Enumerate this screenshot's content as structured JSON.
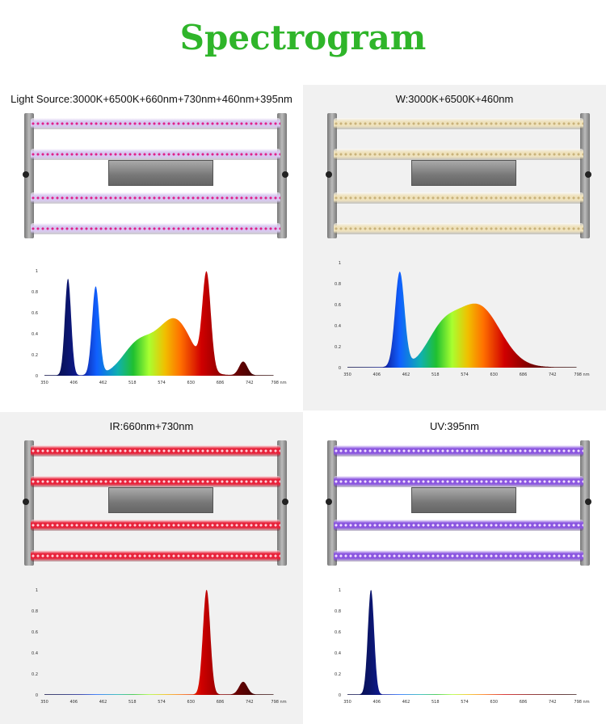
{
  "title": "Spectrogram",
  "colors": {
    "title": "#2fb52a"
  },
  "panels": [
    {
      "label": "Light Source:3000K+6500K+660nm+730nm+460nm+395nm",
      "bar_color": "#d8c8f0",
      "dot_color": "#e0208a"
    },
    {
      "label": "W:3000K+6500K+460nm",
      "bar_color": "#efe2bd",
      "dot_color": "#c9b27a"
    },
    {
      "label": "IR:660nm+730nm",
      "bar_color": "#e8223a",
      "dot_color": "#ffd0d8"
    },
    {
      "label": "UV:395nm",
      "bar_color": "#8a55e0",
      "dot_color": "#f0e0ff"
    }
  ],
  "chart_data": [
    {
      "type": "area",
      "title": "Light Source:3000K+6500K+660nm+730nm+460nm+395nm",
      "xlabel": "nm",
      "ylabel": "",
      "xlim": [
        350,
        798
      ],
      "ylim": [
        0,
        1
      ],
      "xticks": [
        "350",
        "406",
        "462",
        "518",
        "574",
        "630",
        "686",
        "742",
        "798 nm"
      ],
      "yticks": [
        "0",
        "0.2",
        "0.4",
        "0.6",
        "0.8",
        "1"
      ],
      "peaks": [
        {
          "center": 395,
          "height": 0.92,
          "width": 6
        },
        {
          "center": 448,
          "height": 0.84,
          "width": 7
        },
        {
          "center": 530,
          "height": 0.3,
          "width": 30
        },
        {
          "center": 600,
          "height": 0.52,
          "width": 32
        },
        {
          "center": 660,
          "height": 0.9,
          "width": 8
        },
        {
          "center": 730,
          "height": 0.13,
          "width": 8
        }
      ]
    },
    {
      "type": "area",
      "title": "W:3000K+6500K+460nm",
      "xlabel": "nm",
      "ylabel": "",
      "xlim": [
        350,
        798
      ],
      "ylim": [
        0,
        1
      ],
      "xticks": [
        "350",
        "406",
        "462",
        "518",
        "574",
        "630",
        "686",
        "742",
        "798 nm"
      ],
      "yticks": [
        "0",
        "0.2",
        "0.4",
        "0.6",
        "0.8",
        "1"
      ],
      "peaks": [
        {
          "center": 450,
          "height": 0.9,
          "width": 9
        },
        {
          "center": 530,
          "height": 0.3,
          "width": 30
        },
        {
          "center": 600,
          "height": 0.58,
          "width": 42
        }
      ]
    },
    {
      "type": "area",
      "title": "IR:660nm+730nm",
      "xlabel": "nm",
      "ylabel": "",
      "xlim": [
        350,
        798
      ],
      "ylim": [
        0,
        1
      ],
      "xticks": [
        "350",
        "406",
        "462",
        "518",
        "574",
        "630",
        "686",
        "742",
        "798 nm"
      ],
      "yticks": [
        "0",
        "0.2",
        "0.4",
        "0.6",
        "0.8",
        "1"
      ],
      "peaks": [
        {
          "center": 660,
          "height": 1,
          "width": 7
        },
        {
          "center": 730,
          "height": 0.12,
          "width": 8
        }
      ]
    },
    {
      "type": "area",
      "title": "UV:395nm",
      "xlabel": "nm",
      "ylabel": "",
      "xlim": [
        350,
        798
      ],
      "ylim": [
        0,
        1
      ],
      "xticks": [
        "350",
        "406",
        "462",
        "518",
        "574",
        "630",
        "686",
        "742",
        "798 nm"
      ],
      "yticks": [
        "0",
        "0.2",
        "0.4",
        "0.6",
        "0.8",
        "1"
      ],
      "peaks": [
        {
          "center": 395,
          "height": 1,
          "width": 6
        }
      ]
    }
  ]
}
